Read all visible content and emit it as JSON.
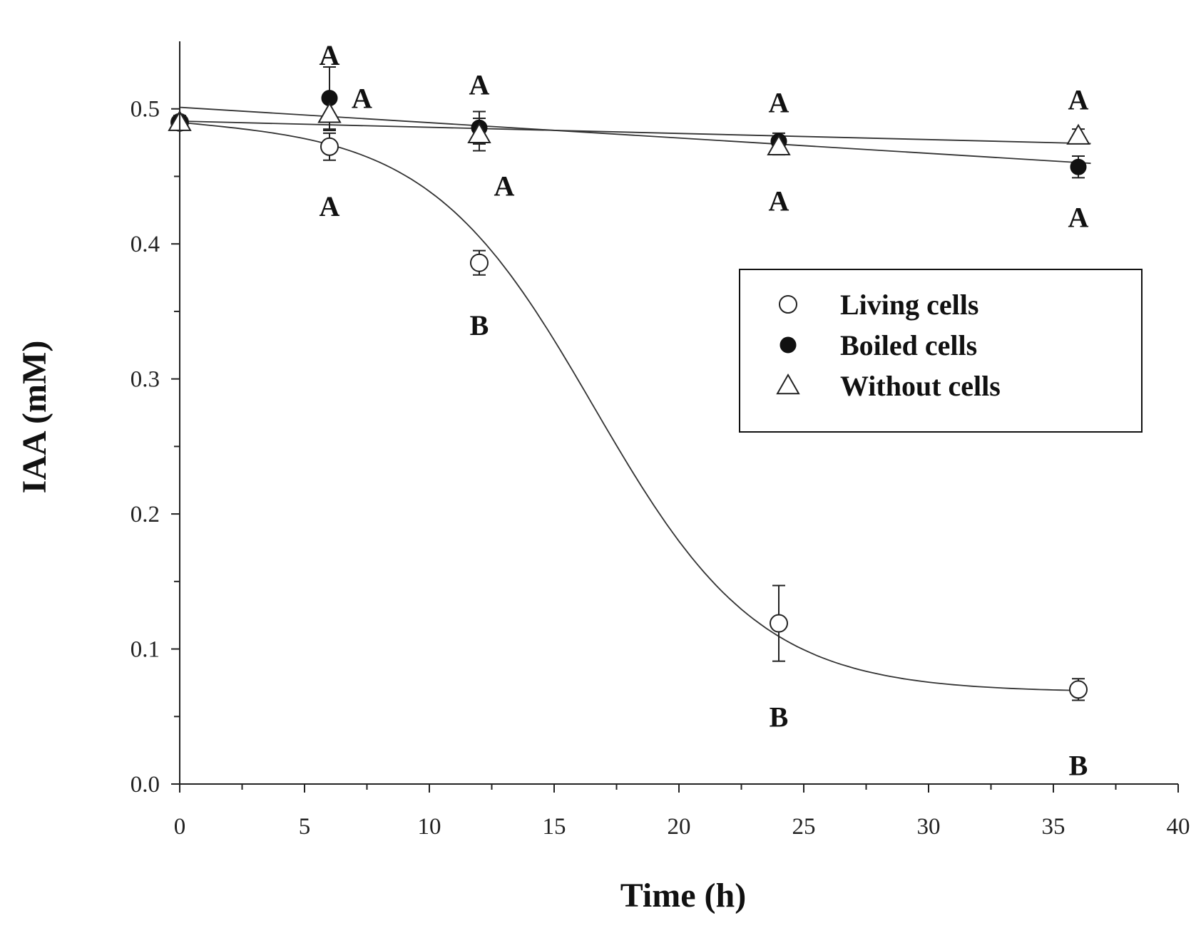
{
  "chart_data": {
    "type": "scatter",
    "xlabel": "Time (h)",
    "ylabel": "IAA (mM)",
    "xlim": [
      0,
      40
    ],
    "ylim": [
      0,
      0.55
    ],
    "xticks": [
      0,
      5,
      10,
      15,
      20,
      25,
      30,
      35,
      40
    ],
    "xtick_labels": [
      "0",
      "5",
      "10",
      "15",
      "20",
      "25",
      "30",
      "35",
      "40"
    ],
    "yticks": [
      0,
      0.1,
      0.2,
      0.3,
      0.4,
      0.5
    ],
    "ytick_labels": [
      "0.0",
      "0.1",
      "0.2",
      "0.3",
      "0.4",
      "0.5"
    ],
    "legend_position": "center-right",
    "series": [
      {
        "name": "Living cells",
        "marker": "open-circle",
        "x": [
          0,
          6,
          12,
          24,
          36
        ],
        "values": [
          0.49,
          0.472,
          0.386,
          0.119,
          0.07
        ],
        "errors": [
          0.005,
          0.01,
          0.009,
          0.028,
          0.008
        ],
        "fit": "sigmoid"
      },
      {
        "name": "Boiled cells",
        "marker": "filled-circle",
        "x": [
          0,
          6,
          12,
          24,
          36
        ],
        "values": [
          0.49,
          0.508,
          0.486,
          0.476,
          0.457
        ],
        "errors": [
          0.005,
          0.023,
          0.012,
          0.006,
          0.008
        ],
        "fit": "linear"
      },
      {
        "name": "Without cells",
        "marker": "open-triangle",
        "x": [
          0,
          6,
          12,
          24,
          36
        ],
        "values": [
          0.49,
          0.496,
          0.481,
          0.472,
          0.48
        ],
        "errors": [
          0.005,
          0.012,
          0.012,
          0.006,
          0.005
        ],
        "fit": "linear"
      }
    ],
    "annotations": [
      {
        "text": "A",
        "x": 6,
        "y": 0.54
      },
      {
        "text": "A",
        "x": 7.3,
        "y": 0.508
      },
      {
        "text": "A",
        "x": 6,
        "y": 0.428
      },
      {
        "text": "A",
        "x": 12,
        "y": 0.518
      },
      {
        "text": "A",
        "x": 13,
        "y": 0.443
      },
      {
        "text": "B",
        "x": 12,
        "y": 0.34
      },
      {
        "text": "A",
        "x": 24,
        "y": 0.505
      },
      {
        "text": "A",
        "x": 24,
        "y": 0.432
      },
      {
        "text": "B",
        "x": 24,
        "y": 0.05
      },
      {
        "text": "A",
        "x": 36,
        "y": 0.507
      },
      {
        "text": "A",
        "x": 36,
        "y": 0.42
      },
      {
        "text": "B",
        "x": 36,
        "y": 0.014
      }
    ]
  }
}
